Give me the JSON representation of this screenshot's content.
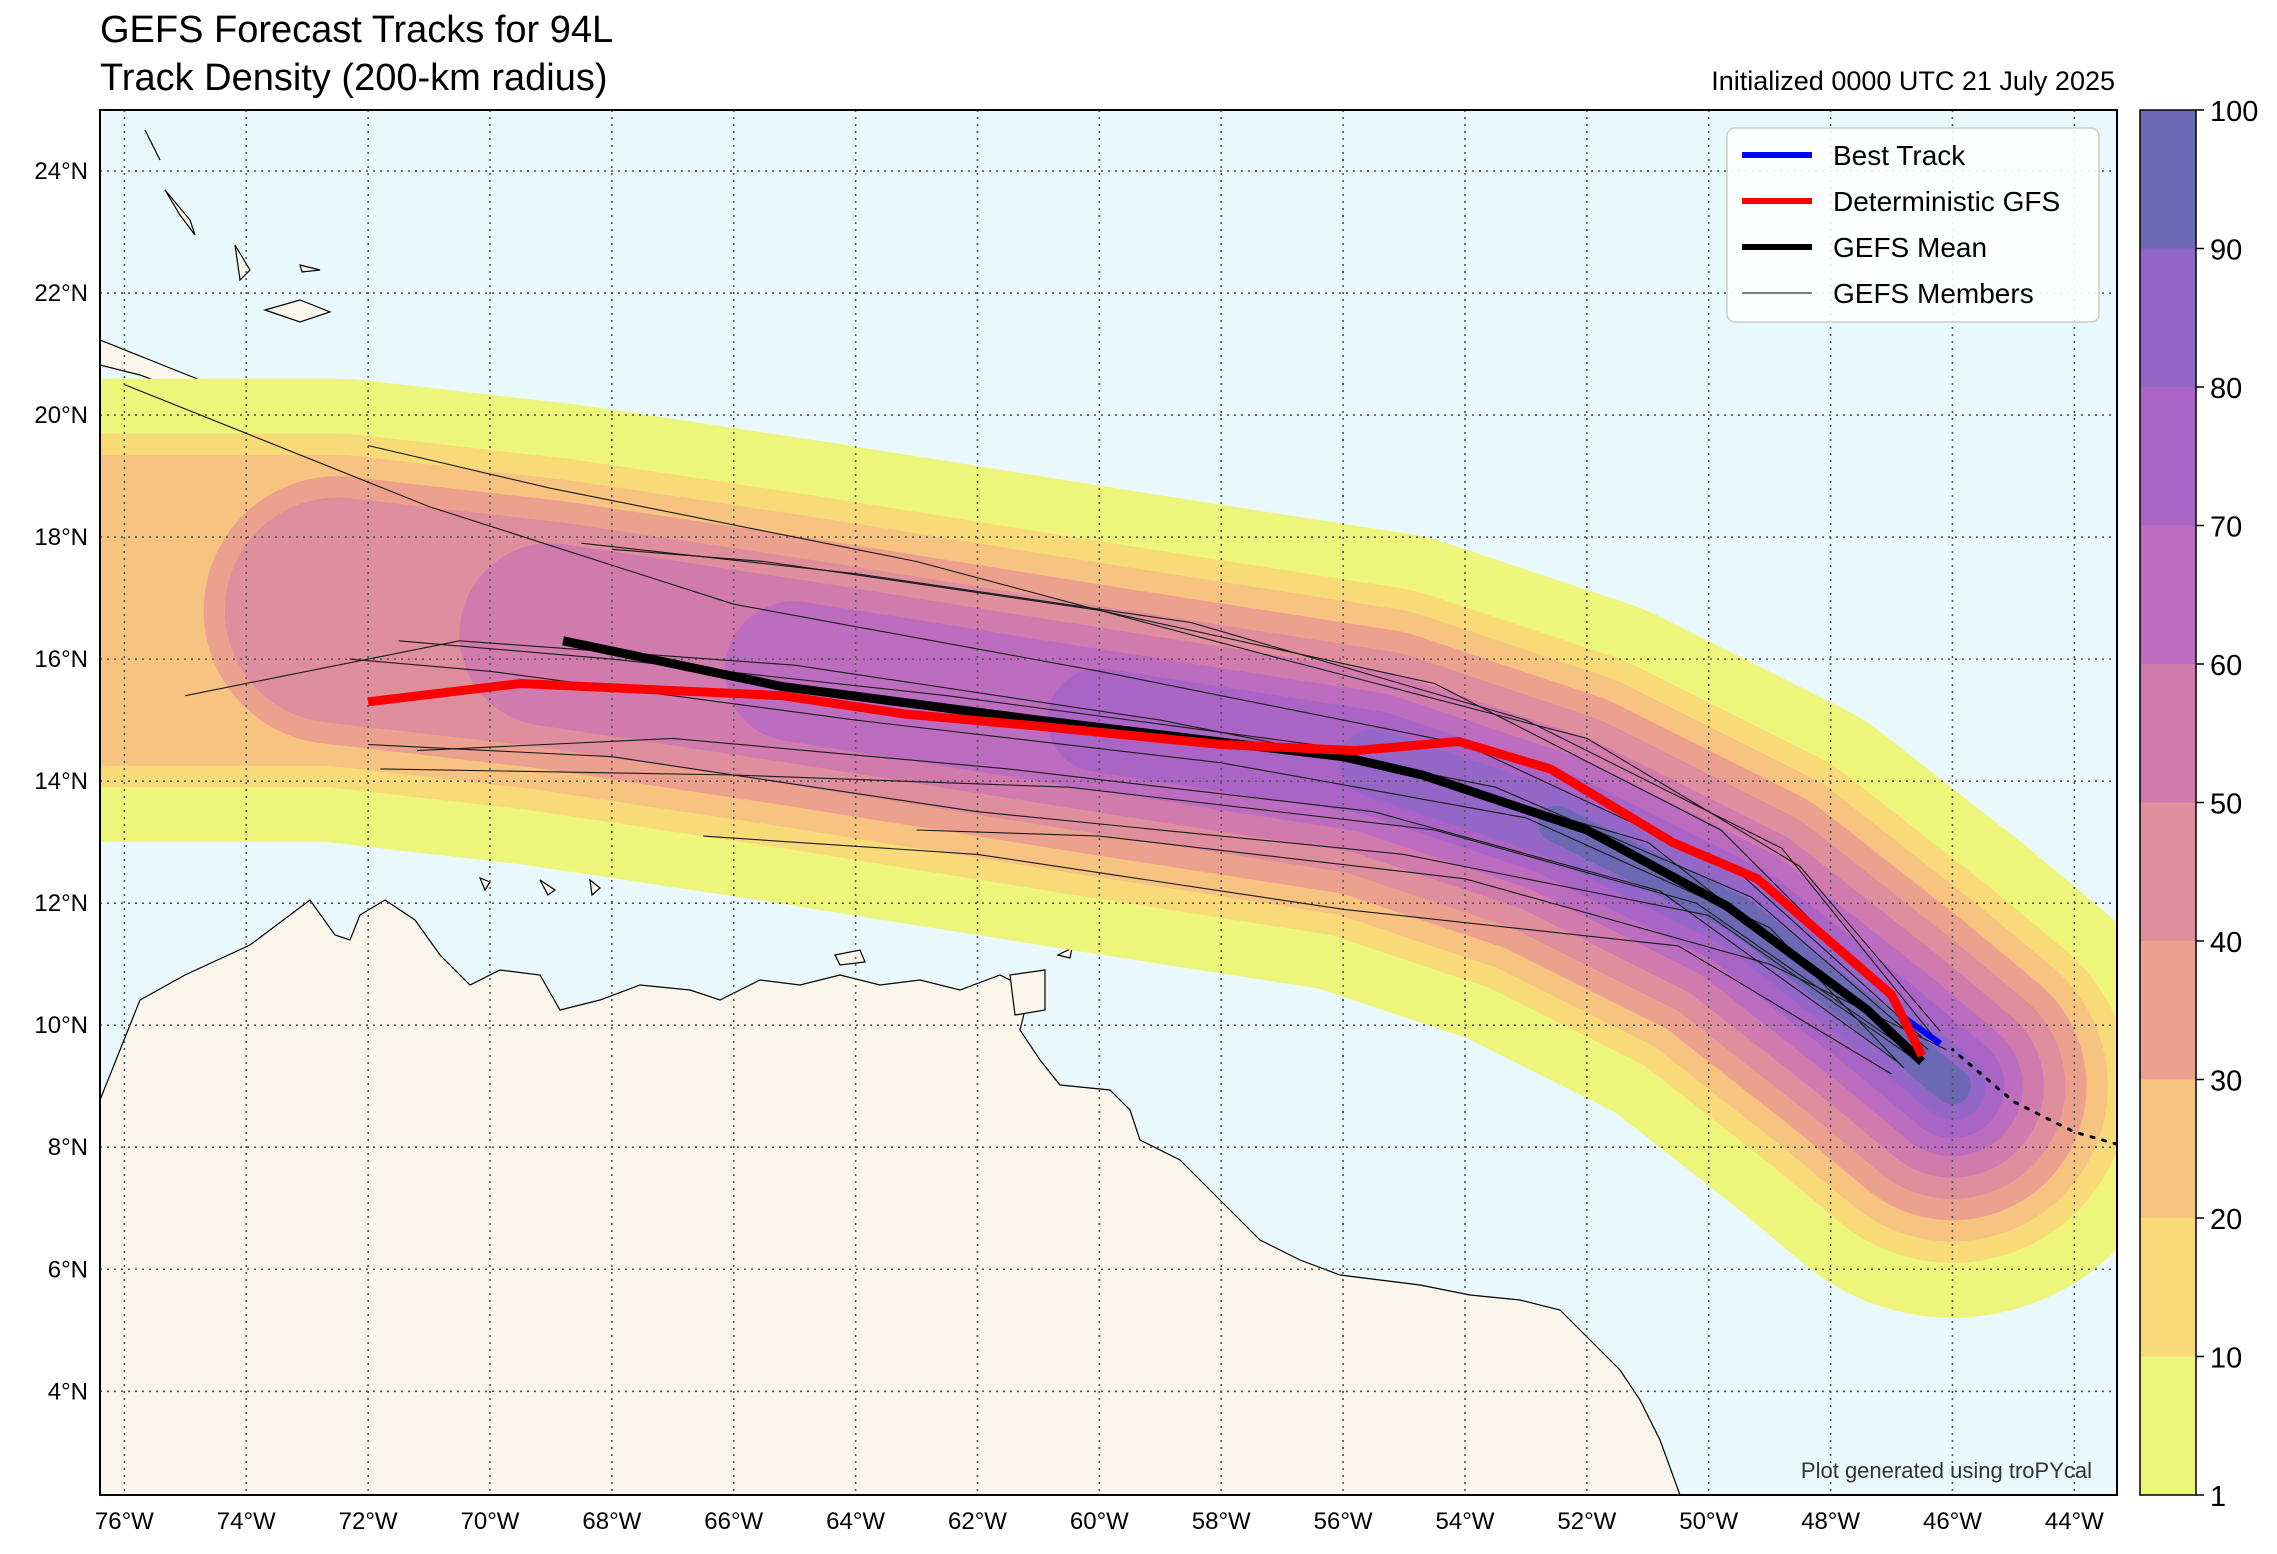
{
  "header": {
    "title_line1": "GEFS Forecast Tracks for 94L",
    "title_line2": "Track Density (200-km radius)",
    "initialized": "Initialized 0000 UTC 21 July 2025"
  },
  "legend": {
    "items": [
      {
        "label": "Best Track",
        "color": "#0000ff",
        "style": "thick"
      },
      {
        "label": "Deterministic GFS",
        "color": "#ff0000",
        "style": "thick"
      },
      {
        "label": "GEFS Mean",
        "color": "#000000",
        "style": "thick"
      },
      {
        "label": "GEFS Members",
        "color": "#000000",
        "style": "thin"
      }
    ]
  },
  "credit": "Plot generated using troPYcal",
  "colors": {
    "ocean": "#e8f8fc",
    "land": "#fbf6eb",
    "best_track": "#0000ff",
    "deterministic": "#ff0000",
    "mean": "#000000"
  },
  "chart_data": {
    "type": "map",
    "projection": "PlateCarree",
    "lon_range": [
      -76.4,
      -43.3
    ],
    "lat_range": [
      2.3,
      25.0
    ],
    "grid": "dotted",
    "x_ticks": [
      -76,
      -74,
      -72,
      -70,
      -68,
      -66,
      -64,
      -62,
      -60,
      -58,
      -56,
      -54,
      -52,
      -50,
      -48,
      -46,
      -44
    ],
    "x_tick_labels": [
      "76°W",
      "74°W",
      "72°W",
      "70°W",
      "68°W",
      "66°W",
      "64°W",
      "62°W",
      "60°W",
      "58°W",
      "56°W",
      "54°W",
      "52°W",
      "50°W",
      "48°W",
      "46°W",
      "44°W"
    ],
    "y_ticks": [
      4,
      6,
      8,
      10,
      12,
      14,
      16,
      18,
      20,
      22,
      24
    ],
    "y_tick_labels": [
      "4°N",
      "6°N",
      "8°N",
      "10°N",
      "12°N",
      "14°N",
      "16°N",
      "18°N",
      "20°N",
      "22°N",
      "24°N"
    ],
    "colorbar": {
      "label_values": [
        "1",
        "10",
        "20",
        "30",
        "40",
        "50",
        "60",
        "70",
        "80",
        "90",
        "100"
      ],
      "levels": [
        1,
        10,
        20,
        30,
        40,
        50,
        60,
        70,
        80,
        90,
        100
      ],
      "colors": [
        "#edf67a",
        "#f8db78",
        "#f6c380",
        "#eca18f",
        "#df8e9e",
        "#d07aae",
        "#bd6dbf",
        "#a964c5",
        "#9466c8",
        "#6b69b4"
      ]
    },
    "density_bands": [
      {
        "min": 1,
        "width_deg": 3.8,
        "color": "#edf67a"
      },
      {
        "min": 10,
        "width_deg": 2.9,
        "color": "#f8db78"
      },
      {
        "min": 20,
        "width_deg": 2.55,
        "color": "#f6c380"
      },
      {
        "min": 30,
        "width_deg": 2.2,
        "color": "#eca18f"
      },
      {
        "min": 40,
        "width_deg": 1.85,
        "color": "#df8e9e"
      },
      {
        "min": 50,
        "width_deg": 1.5,
        "color": "#d07aae"
      },
      {
        "min": 60,
        "width_deg": 1.15,
        "color": "#bd6dbf"
      },
      {
        "min": 70,
        "width_deg": 0.85,
        "color": "#a964c5"
      },
      {
        "min": 80,
        "width_deg": 0.55,
        "color": "#9466c8"
      },
      {
        "min": 90,
        "width_deg": 0.3,
        "color": "#6b69b4"
      }
    ],
    "series": [
      {
        "name": "Best Track",
        "color": "#0000ff",
        "points": [
          [
            -46.2,
            9.7
          ],
          [
            -46.9,
            10.2
          ]
        ]
      },
      {
        "name": "Best Track",
        "color": "#000000",
        "dotted": true,
        "points": [
          [
            -43.3,
            8.05
          ],
          [
            -44.0,
            8.25
          ],
          [
            -45.0,
            8.75
          ],
          [
            -46.0,
            9.6
          ]
        ]
      },
      {
        "name": "Deterministic GFS",
        "color": "#ff0000",
        "points": [
          [
            -46.5,
            9.5
          ],
          [
            -47.0,
            10.5
          ],
          [
            -49.2,
            12.4
          ],
          [
            -50.6,
            13.0
          ],
          [
            -52.6,
            14.2
          ],
          [
            -54.1,
            14.65
          ],
          [
            -55.8,
            14.5
          ],
          [
            -58.0,
            14.6
          ],
          [
            -61.0,
            14.9
          ],
          [
            -63.2,
            15.1
          ],
          [
            -65.2,
            15.4
          ],
          [
            -69.5,
            15.6
          ],
          [
            -72.0,
            15.3
          ]
        ]
      },
      {
        "name": "GEFS Mean",
        "color": "#000000",
        "points": [
          [
            -46.5,
            9.4
          ],
          [
            -47.4,
            10.25
          ],
          [
            -49.7,
            11.95
          ],
          [
            -52.0,
            13.2
          ],
          [
            -54.7,
            14.1
          ],
          [
            -56.0,
            14.4
          ],
          [
            -61.0,
            15.0
          ],
          [
            -65.2,
            15.55
          ],
          [
            -68.8,
            16.3
          ]
        ]
      },
      {
        "name": "GEFS Members",
        "color": "#000000",
        "thin": true,
        "points": [
          [
            -46.8,
            9.3
          ],
          [
            -49.0,
            11.6
          ],
          [
            -53.0,
            13.4
          ],
          [
            -58.0,
            14.3
          ],
          [
            -64.0,
            15.0
          ],
          [
            -70.0,
            15.8
          ],
          [
            -72.3,
            16.0
          ]
        ]
      },
      {
        "name": "GEFS Members",
        "color": "#000000",
        "thin": true,
        "points": [
          [
            -46.5,
            9.8
          ],
          [
            -49.5,
            12.5
          ],
          [
            -54.0,
            14.6
          ],
          [
            -60.0,
            15.8
          ],
          [
            -66.0,
            16.9
          ],
          [
            -71.0,
            18.5
          ],
          [
            -76.0,
            20.5
          ]
        ]
      },
      {
        "name": "GEFS Members",
        "color": "#000000",
        "thin": true,
        "points": [
          [
            -46.7,
            9.5
          ],
          [
            -50.0,
            11.8
          ],
          [
            -55.0,
            12.8
          ],
          [
            -62.0,
            13.5
          ],
          [
            -68.0,
            14.4
          ],
          [
            -72.0,
            14.6
          ]
        ]
      },
      {
        "name": "GEFS Members",
        "color": "#000000",
        "thin": true,
        "points": [
          [
            -46.2,
            9.9
          ],
          [
            -48.5,
            12.6
          ],
          [
            -52.0,
            14.7
          ],
          [
            -57.0,
            16.0
          ],
          [
            -63.0,
            17.6
          ],
          [
            -69.0,
            18.8
          ],
          [
            -72.0,
            19.5
          ]
        ]
      },
      {
        "name": "GEFS Members",
        "color": "#000000",
        "thin": true,
        "points": [
          [
            -47.0,
            9.2
          ],
          [
            -50.5,
            11.3
          ],
          [
            -56.0,
            11.9
          ],
          [
            -62.0,
            12.8
          ],
          [
            -66.5,
            13.1
          ]
        ]
      },
      {
        "name": "GEFS Members",
        "color": "#000000",
        "thin": true,
        "points": [
          [
            -46.4,
            9.6
          ],
          [
            -49.3,
            12.1
          ],
          [
            -53.5,
            13.9
          ],
          [
            -59.0,
            15.0
          ],
          [
            -65.0,
            15.9
          ],
          [
            -70.5,
            16.3
          ],
          [
            -75.0,
            15.4
          ]
        ]
      },
      {
        "name": "GEFS Members",
        "color": "#000000",
        "thin": true,
        "points": [
          [
            -46.9,
            9.4
          ],
          [
            -50.8,
            12.2
          ],
          [
            -55.5,
            13.5
          ],
          [
            -61.5,
            14.2
          ],
          [
            -67.0,
            14.7
          ],
          [
            -71.2,
            14.5
          ]
        ]
      },
      {
        "name": "GEFS Members",
        "color": "#000000",
        "thin": true,
        "points": [
          [
            -46.3,
            9.8
          ],
          [
            -48.8,
            12.9
          ],
          [
            -53.0,
            15.0
          ],
          [
            -58.5,
            16.6
          ],
          [
            -64.0,
            17.4
          ],
          [
            -68.5,
            17.9
          ]
        ]
      },
      {
        "name": "GEFS Members",
        "color": "#000000",
        "thin": true,
        "points": [
          [
            -46.6,
            9.5
          ],
          [
            -50.2,
            12.0
          ],
          [
            -54.5,
            13.2
          ],
          [
            -60.5,
            13.9
          ],
          [
            -66.0,
            14.1
          ],
          [
            -71.8,
            14.2
          ]
        ]
      },
      {
        "name": "GEFS Members",
        "color": "#000000",
        "thin": true,
        "points": [
          [
            -46.8,
            9.7
          ],
          [
            -51.0,
            13.0
          ],
          [
            -56.5,
            14.6
          ],
          [
            -62.5,
            15.4
          ],
          [
            -68.0,
            16.0
          ],
          [
            -71.5,
            16.3
          ]
        ]
      },
      {
        "name": "GEFS Members",
        "color": "#000000",
        "thin": true,
        "points": [
          [
            -46.1,
            9.6
          ],
          [
            -49.0,
            11.0
          ],
          [
            -54.0,
            12.4
          ],
          [
            -60.0,
            13.1
          ],
          [
            -63.0,
            13.2
          ]
        ]
      },
      {
        "name": "GEFS Members",
        "color": "#000000",
        "thin": true,
        "points": [
          [
            -46.5,
            9.9
          ],
          [
            -49.8,
            13.2
          ],
          [
            -54.5,
            15.6
          ],
          [
            -60.0,
            16.8
          ],
          [
            -65.5,
            17.6
          ],
          [
            -68.0,
            17.8
          ]
        ]
      }
    ]
  }
}
